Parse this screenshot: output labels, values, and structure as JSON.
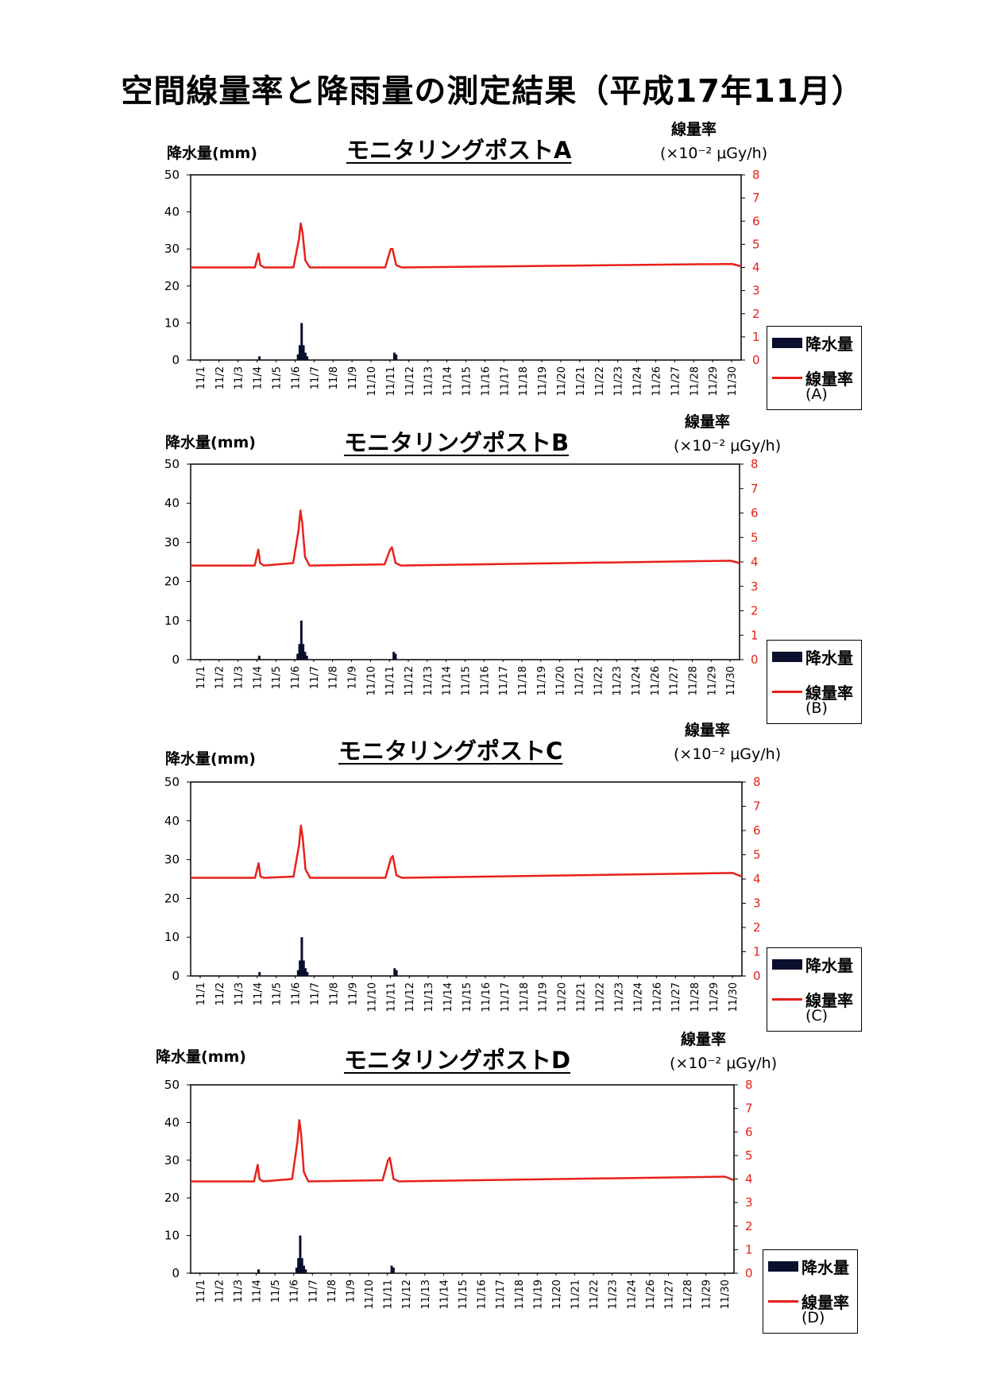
{
  "page": {
    "title": "空間線量率と降雨量の測定結果（平成17年11月）"
  },
  "colors": {
    "dose_line": "#e8201a",
    "rain_bar": "#0a0f2e",
    "right_axis": "#e8201a"
  },
  "chart_data": [
    {
      "type": "bar+line",
      "title": "モニタリングポストA",
      "ylabel_left": "降水量",
      "ylabel_left_unit": "(mm)",
      "ylabel_right": "線量率",
      "ylabel_right_unit": "(×10⁻² μGy/h)",
      "ylim_left": [
        0,
        50
      ],
      "yticks_left": [
        "0",
        "10",
        "20",
        "30",
        "40",
        "50"
      ],
      "ylim_right": [
        0,
        8
      ],
      "yticks_right": [
        "0",
        "1",
        "2",
        "3",
        "4",
        "5",
        "6",
        "7",
        "8"
      ],
      "categories": [
        "11/1",
        "11/2",
        "11/3",
        "11/4",
        "11/5",
        "11/6",
        "11/7",
        "11/8",
        "11/9",
        "11/10",
        "11/11",
        "11/12",
        "11/13",
        "11/14",
        "11/15",
        "11/16",
        "11/17",
        "11/18",
        "11/19",
        "11/20",
        "11/21",
        "11/22",
        "11/23",
        "11/24",
        "11/26",
        "11/27",
        "11/28",
        "11/29",
        "11/30"
      ],
      "legend": {
        "bar": "降水量",
        "line": "線量率",
        "station": "(A)",
        "position": "right"
      },
      "series": [
        {
          "name": "降水量",
          "kind": "bar",
          "x": [
            3.75,
            5.85,
            5.95,
            6.05,
            6.1,
            6.15,
            6.25,
            6.35,
            11.1,
            11.2
          ],
          "values": [
            1,
            1.5,
            4,
            10,
            2,
            4,
            2,
            1,
            2,
            1.5
          ]
        },
        {
          "name": "線量率",
          "kind": "line",
          "x": [
            0,
            3.5,
            3.7,
            3.8,
            4.0,
            5.6,
            5.9,
            6.0,
            6.1,
            6.25,
            6.5,
            10.6,
            10.9,
            11.0,
            11.2,
            11.5,
            29.5,
            30
          ],
          "values": [
            4.0,
            4.0,
            4.6,
            4.1,
            4.0,
            4.0,
            5.2,
            5.9,
            5.5,
            4.3,
            4.0,
            4.0,
            4.8,
            4.8,
            4.1,
            4.0,
            4.15,
            4.05
          ]
        }
      ]
    },
    {
      "type": "bar+line",
      "title": "モニタリングポストB",
      "ylabel_left": "降水量",
      "ylabel_left_unit": "(mm)",
      "ylabel_right": "線量率",
      "ylabel_right_unit": "(×10⁻² μGy/h)",
      "ylim_left": [
        0,
        50
      ],
      "yticks_left": [
        "0",
        "10",
        "20",
        "30",
        "40",
        "50"
      ],
      "ylim_right": [
        0,
        8
      ],
      "yticks_right": [
        "0",
        "1",
        "2",
        "3",
        "4",
        "5",
        "6",
        "7",
        "8"
      ],
      "categories": [
        "11/1",
        "11/2",
        "11/3",
        "11/4",
        "11/5",
        "11/6",
        "11/7",
        "11/8",
        "11/9",
        "11/10",
        "11/11",
        "11/12",
        "11/13",
        "11/14",
        "11/15",
        "11/16",
        "11/17",
        "11/18",
        "11/19",
        "11/20",
        "11/21",
        "11/22",
        "11/23",
        "11/24",
        "11/26",
        "11/27",
        "11/28",
        "11/29",
        "11/30"
      ],
      "legend": {
        "bar": "降水量",
        "line": "線量率",
        "station": "(B)",
        "position": "right"
      },
      "series": [
        {
          "name": "降水量",
          "kind": "bar",
          "x": [
            3.75,
            5.85,
            5.95,
            6.05,
            6.1,
            6.15,
            6.25,
            6.35,
            11.1,
            11.2
          ],
          "values": [
            1,
            1.5,
            4,
            10,
            2,
            4,
            2,
            1,
            2,
            1.5
          ]
        },
        {
          "name": "線量率",
          "kind": "line",
          "x": [
            0,
            3.5,
            3.7,
            3.8,
            4.0,
            5.6,
            5.9,
            6.0,
            6.1,
            6.25,
            6.5,
            10.6,
            10.9,
            11.0,
            11.2,
            11.5,
            29.5,
            30
          ],
          "values": [
            3.85,
            3.85,
            4.5,
            3.95,
            3.85,
            3.95,
            5.3,
            6.1,
            5.6,
            4.2,
            3.85,
            3.9,
            4.5,
            4.6,
            3.95,
            3.85,
            4.05,
            3.95
          ]
        }
      ]
    },
    {
      "type": "bar+line",
      "title": "モニタリングポストC",
      "ylabel_left": "降水量",
      "ylabel_left_unit": "(mm)",
      "ylabel_right": "線量率",
      "ylabel_right_unit": "(×10⁻² μGy/h)",
      "ylim_left": [
        0,
        50
      ],
      "yticks_left": [
        "0",
        "10",
        "20",
        "30",
        "40",
        "50"
      ],
      "ylim_right": [
        0,
        8
      ],
      "yticks_right": [
        "0",
        "1",
        "2",
        "3",
        "4",
        "5",
        "6",
        "7",
        "8"
      ],
      "categories": [
        "11/1",
        "11/2",
        "11/3",
        "11/4",
        "11/5",
        "11/6",
        "11/7",
        "11/8",
        "11/9",
        "11/10",
        "11/11",
        "11/12",
        "11/13",
        "11/14",
        "11/15",
        "11/16",
        "11/17",
        "11/18",
        "11/19",
        "11/20",
        "11/21",
        "11/22",
        "11/23",
        "11/24",
        "11/26",
        "11/27",
        "11/28",
        "11/29",
        "11/30"
      ],
      "legend": {
        "bar": "降水量",
        "line": "線量率",
        "station": "(C)",
        "position": "right"
      },
      "series": [
        {
          "name": "降水量",
          "kind": "bar",
          "x": [
            3.75,
            5.85,
            5.95,
            6.05,
            6.1,
            6.15,
            6.25,
            6.35,
            11.1,
            11.2
          ],
          "values": [
            1,
            1.5,
            4,
            10,
            2,
            4,
            2,
            1,
            2,
            1.5
          ]
        },
        {
          "name": "線量率",
          "kind": "line",
          "x": [
            0,
            3.5,
            3.7,
            3.8,
            4.0,
            5.6,
            5.9,
            6.0,
            6.1,
            6.25,
            6.5,
            10.6,
            10.9,
            11.0,
            11.2,
            11.5,
            29.5,
            30
          ],
          "values": [
            4.05,
            4.05,
            4.65,
            4.1,
            4.05,
            4.1,
            5.4,
            6.2,
            5.7,
            4.4,
            4.05,
            4.05,
            4.85,
            4.95,
            4.15,
            4.05,
            4.25,
            4.1
          ]
        }
      ]
    },
    {
      "type": "bar+line",
      "title": "モニタリングポストD",
      "ylabel_left": "降水量",
      "ylabel_left_unit": "(mm)",
      "ylabel_right": "線量率",
      "ylabel_right_unit": "(×10⁻² μGy/h)",
      "ylim_left": [
        0,
        50
      ],
      "yticks_left": [
        "0",
        "10",
        "20",
        "30",
        "40",
        "50"
      ],
      "ylim_right": [
        0,
        8
      ],
      "yticks_right": [
        "0",
        "1",
        "2",
        "3",
        "4",
        "5",
        "6",
        "7",
        "8"
      ],
      "categories": [
        "11/1",
        "11/2",
        "11/3",
        "11/4",
        "11/5",
        "11/6",
        "11/7",
        "11/8",
        "11/9",
        "11/10",
        "11/11",
        "11/12",
        "11/13",
        "11/14",
        "11/15",
        "11/16",
        "11/17",
        "11/18",
        "11/19",
        "11/20",
        "11/21",
        "11/22",
        "11/23",
        "11/24",
        "11/26",
        "11/27",
        "11/28",
        "11/29",
        "11/30"
      ],
      "legend": {
        "bar": "降水量",
        "line": "線量率",
        "station": "(D)",
        "position": "right"
      },
      "series": [
        {
          "name": "降水量",
          "kind": "bar",
          "x": [
            3.75,
            5.85,
            5.95,
            6.05,
            6.1,
            6.15,
            6.25,
            6.35,
            11.1,
            11.2
          ],
          "values": [
            1,
            1.5,
            4,
            10,
            2,
            4,
            2,
            1,
            2,
            1.5
          ]
        },
        {
          "name": "線量率",
          "kind": "line",
          "x": [
            0,
            3.5,
            3.7,
            3.8,
            4.0,
            5.6,
            5.9,
            6.0,
            6.1,
            6.25,
            6.5,
            10.6,
            10.9,
            11.0,
            11.2,
            11.5,
            29.5,
            30
          ],
          "values": [
            3.9,
            3.9,
            4.6,
            4.0,
            3.9,
            4.0,
            5.6,
            6.5,
            5.9,
            4.3,
            3.9,
            3.95,
            4.8,
            4.9,
            4.0,
            3.9,
            4.1,
            3.95
          ]
        }
      ]
    }
  ]
}
